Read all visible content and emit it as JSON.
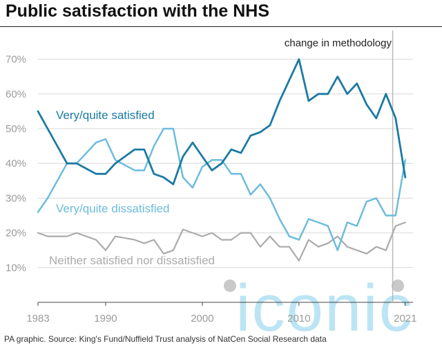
{
  "title": "Public satisfaction with the NHS",
  "source": "PA graphic. Source: King's Fund/Nuffield Trust analysis of NatCen Social Research data",
  "annotation": "change in methodology",
  "watermark": "iconic",
  "colors": {
    "satisfied": "#1b7aa3",
    "dissatisfied": "#6cbcdc",
    "neither": "#ababab",
    "grid": "#d8d8d8",
    "marker": "#b8b8b8",
    "watermark": "#3fb7e0"
  },
  "chart_data": {
    "type": "line",
    "title": "Public satisfaction with the NHS",
    "xlabel": "",
    "ylabel": "",
    "xlim": [
      1983,
      2021.8
    ],
    "ylim": [
      0,
      75
    ],
    "grid": true,
    "y_ticks": [
      10,
      20,
      30,
      40,
      50,
      60,
      70
    ],
    "y_tick_labels": [
      "10%",
      "20%",
      "30%",
      "40%",
      "50%",
      "60%",
      "70%"
    ],
    "x_ticks": [
      1983,
      1990,
      2000,
      2010,
      2021
    ],
    "x_tick_labels": [
      "1983",
      "1990",
      "2000",
      "2010",
      "2021"
    ],
    "methodology_change_year": 2019.7,
    "series": [
      {
        "name": "Very/quite satisfied",
        "key": "satisfied",
        "points": [
          [
            1983,
            55
          ],
          [
            1984,
            50
          ],
          [
            1986,
            40
          ],
          [
            1987,
            40
          ],
          [
            1989,
            37
          ],
          [
            1990,
            37
          ],
          [
            1991,
            40
          ],
          [
            1993,
            44
          ],
          [
            1994,
            44
          ],
          [
            1995,
            37
          ],
          [
            1996,
            36
          ],
          [
            1997,
            34
          ],
          [
            1998,
            42
          ],
          [
            1999,
            46
          ],
          [
            2000,
            42
          ],
          [
            2001,
            38
          ],
          [
            2002,
            40
          ],
          [
            2003,
            44
          ],
          [
            2004,
            43
          ],
          [
            2005,
            48
          ],
          [
            2006,
            49
          ],
          [
            2007,
            51
          ],
          [
            2008,
            58
          ],
          [
            2009,
            64
          ],
          [
            2010,
            70
          ],
          [
            2011,
            58
          ],
          [
            2012,
            60
          ],
          [
            2013,
            60
          ],
          [
            2014,
            65
          ],
          [
            2015,
            60
          ],
          [
            2016,
            63
          ],
          [
            2017,
            57
          ],
          [
            2018,
            53
          ],
          [
            2019,
            60
          ],
          [
            2020,
            53
          ],
          [
            2021,
            36
          ]
        ]
      },
      {
        "name": "Very/quite dissatisfied",
        "key": "dissatisfied",
        "points": [
          [
            1983,
            26
          ],
          [
            1984,
            30
          ],
          [
            1986,
            40
          ],
          [
            1987,
            40
          ],
          [
            1989,
            46
          ],
          [
            1990,
            47
          ],
          [
            1991,
            41
          ],
          [
            1993,
            38
          ],
          [
            1994,
            38
          ],
          [
            1995,
            45
          ],
          [
            1996,
            50
          ],
          [
            1997,
            50
          ],
          [
            1998,
            36
          ],
          [
            1999,
            33
          ],
          [
            2000,
            39
          ],
          [
            2001,
            41
          ],
          [
            2002,
            41
          ],
          [
            2003,
            37
          ],
          [
            2004,
            37
          ],
          [
            2005,
            31
          ],
          [
            2006,
            34
          ],
          [
            2007,
            30
          ],
          [
            2008,
            24
          ],
          [
            2009,
            19
          ],
          [
            2010,
            18
          ],
          [
            2011,
            24
          ],
          [
            2012,
            23
          ],
          [
            2013,
            22
          ],
          [
            2014,
            15
          ],
          [
            2015,
            23
          ],
          [
            2016,
            22
          ],
          [
            2017,
            29
          ],
          [
            2018,
            30
          ],
          [
            2019,
            25
          ],
          [
            2020,
            25
          ],
          [
            2021,
            41
          ]
        ]
      },
      {
        "name": "Neither satisfied nor dissatisfied",
        "key": "neither",
        "points": [
          [
            1983,
            20
          ],
          [
            1984,
            19
          ],
          [
            1986,
            19
          ],
          [
            1987,
            20
          ],
          [
            1989,
            18
          ],
          [
            1990,
            15
          ],
          [
            1991,
            19
          ],
          [
            1993,
            18
          ],
          [
            1994,
            17
          ],
          [
            1995,
            18
          ],
          [
            1996,
            14
          ],
          [
            1997,
            15
          ],
          [
            1998,
            21
          ],
          [
            1999,
            20
          ],
          [
            2000,
            19
          ],
          [
            2001,
            20
          ],
          [
            2002,
            18
          ],
          [
            2003,
            18
          ],
          [
            2004,
            20
          ],
          [
            2005,
            20
          ],
          [
            2006,
            16
          ],
          [
            2007,
            19
          ],
          [
            2008,
            16
          ],
          [
            2009,
            16
          ],
          [
            2010,
            12
          ],
          [
            2011,
            18
          ],
          [
            2012,
            16
          ],
          [
            2013,
            17
          ],
          [
            2014,
            19
          ],
          [
            2015,
            16
          ],
          [
            2016,
            15
          ],
          [
            2017,
            14
          ],
          [
            2018,
            16
          ],
          [
            2019,
            15
          ],
          [
            2020,
            22
          ],
          [
            2021,
            23
          ]
        ]
      }
    ]
  }
}
